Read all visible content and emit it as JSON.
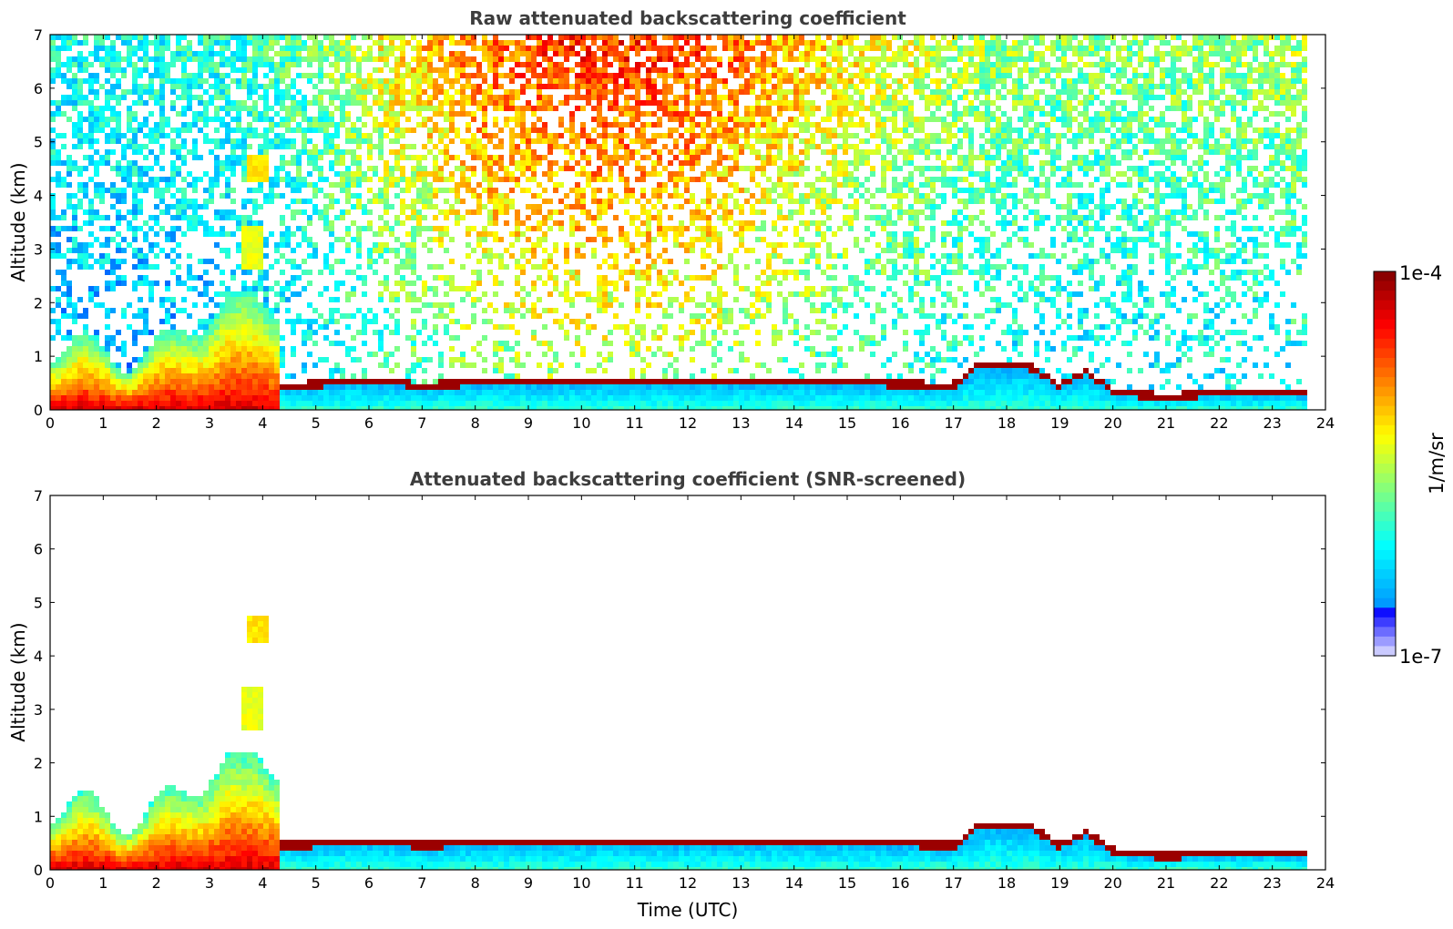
{
  "chart_data": [
    {
      "type": "heatmap",
      "title": "Raw attenuated backscattering coefficient",
      "xlabel": "",
      "ylabel": "Altitude (km)",
      "xlim": [
        0,
        24
      ],
      "ylim": [
        0,
        7
      ],
      "xticks": [
        "0",
        "1",
        "2",
        "3",
        "4",
        "5",
        "6",
        "7",
        "8",
        "9",
        "10",
        "11",
        "12",
        "13",
        "14",
        "15",
        "16",
        "17",
        "18",
        "19",
        "20",
        "21",
        "22",
        "23",
        "24"
      ],
      "yticks": [
        "0",
        "1",
        "2",
        "3",
        "4",
        "5",
        "6",
        "7"
      ],
      "data_end_hour": 23.65,
      "background_level_by_hour": {
        "hours": [
          0,
          3,
          5,
          6.5,
          8,
          10,
          12,
          14,
          16,
          18,
          20,
          22,
          23.65
        ],
        "level": [
          0.3,
          0.32,
          0.42,
          0.6,
          0.74,
          0.82,
          0.8,
          0.66,
          0.54,
          0.46,
          0.44,
          0.46,
          0.48
        ]
      },
      "boundary_layer_top_km": {
        "hours": [
          4.3,
          5,
          6,
          7,
          8,
          9,
          10,
          11,
          12,
          13,
          14,
          15,
          16,
          17.0,
          17.5,
          18,
          18.5,
          19,
          19.5,
          20,
          20.5,
          21,
          22,
          23,
          23.65
        ],
        "values": [
          0.45,
          0.47,
          0.55,
          0.45,
          0.5,
          0.52,
          0.52,
          0.53,
          0.5,
          0.52,
          0.52,
          0.5,
          0.48,
          0.45,
          0.85,
          0.82,
          0.78,
          0.45,
          0.7,
          0.35,
          0.28,
          0.25,
          0.3,
          0.3,
          0.3
        ]
      },
      "aerosol_plumes": [
        {
          "center_hour": 3.95,
          "center_km": 4.5,
          "level": 0.6
        },
        {
          "center_hour": 3.8,
          "center_km": 3.0,
          "level": 0.55
        }
      ]
    },
    {
      "type": "heatmap",
      "title": "Attenuated backscattering coefficient (SNR-screened)",
      "xlabel": "Time (UTC)",
      "ylabel": "Altitude (km)",
      "xlim": [
        0,
        24
      ],
      "ylim": [
        0,
        7
      ],
      "xticks": [
        "0",
        "1",
        "2",
        "3",
        "4",
        "5",
        "6",
        "7",
        "8",
        "9",
        "10",
        "11",
        "12",
        "13",
        "14",
        "15",
        "16",
        "17",
        "18",
        "19",
        "20",
        "21",
        "22",
        "23",
        "24"
      ],
      "yticks": [
        "0",
        "1",
        "2",
        "3",
        "4",
        "5",
        "6",
        "7"
      ],
      "data_end_hour": 23.65,
      "aerosol_plumes": [
        {
          "center_hour": 3.95,
          "center_km": 4.5,
          "level": 0.6
        },
        {
          "center_hour": 3.8,
          "center_km": 3.0,
          "level": 0.55
        }
      ]
    }
  ],
  "colorbar": {
    "label": "1/m/sr",
    "max_label": "1e-4",
    "min_label": "1e-7",
    "colormap": [
      "#0000ff",
      "#00a0ff",
      "#00ffff",
      "#80ff80",
      "#ffff00",
      "#ff8000",
      "#ff0000",
      "#800000"
    ]
  }
}
